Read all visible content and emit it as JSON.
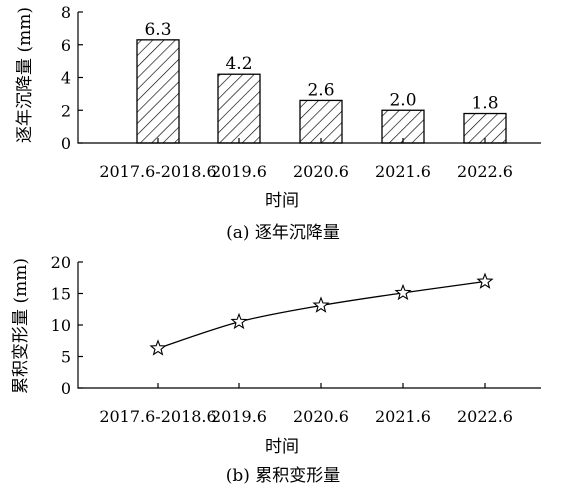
{
  "chart_data": [
    {
      "type": "bar",
      "caption": "(a) 逐年沉降量",
      "xlabel": "时间",
      "ylabel": "逐年沉降量 (mm)",
      "categories": [
        "2017.6-2018.6",
        "2019.6",
        "2020.6",
        "2021.6",
        "2022.6"
      ],
      "values": [
        6.3,
        4.2,
        2.6,
        2.0,
        1.8
      ],
      "data_labels": [
        "6.3",
        "4.2",
        "2.6",
        "2.0",
        "1.8"
      ],
      "ylim": [
        0,
        8
      ],
      "yticks": [
        0,
        2,
        4,
        6,
        8
      ],
      "bar_fill": "diagonal-hatch",
      "grid": false,
      "legend": "none"
    },
    {
      "type": "line",
      "caption": "(b) 累积变形量",
      "xlabel": "时间",
      "ylabel": "累积变形量 (mm)",
      "categories": [
        "2017.6-2018.6",
        "2019.6",
        "2020.6",
        "2021.6",
        "2022.6"
      ],
      "values": [
        6.3,
        10.5,
        13.1,
        15.1,
        16.9
      ],
      "ylim": [
        0,
        20
      ],
      "yticks": [
        0,
        5,
        10,
        15,
        20
      ],
      "marker": "star-open",
      "smooth": true,
      "grid": false,
      "legend": "none"
    }
  ]
}
